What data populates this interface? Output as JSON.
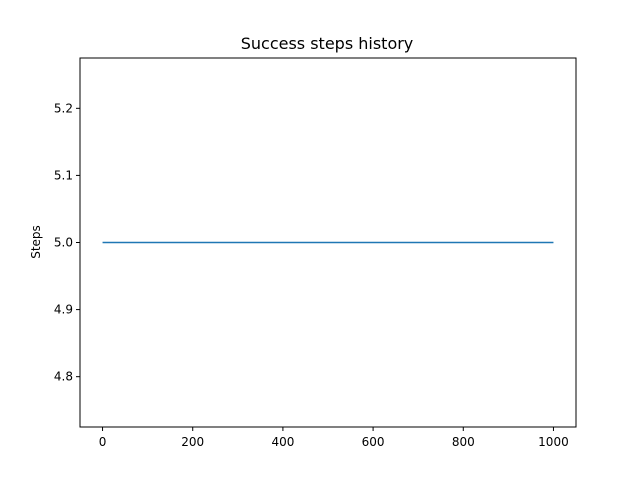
{
  "chart_data": {
    "type": "line",
    "title": "Success steps history",
    "xlabel": "",
    "ylabel": "Steps",
    "xlim": [
      -50,
      1050
    ],
    "ylim": [
      4.725,
      5.275
    ],
    "xticks": [
      0,
      200,
      400,
      600,
      800,
      1000
    ],
    "yticks": [
      4.8,
      4.9,
      5.0,
      5.1,
      5.2
    ],
    "xtick_labels": [
      "0",
      "200",
      "400",
      "600",
      "800",
      "1000"
    ],
    "ytick_labels": [
      "4.8",
      "4.9",
      "5.0",
      "5.1",
      "5.2"
    ],
    "grid": false,
    "legend": "none",
    "series": [
      {
        "color": "#1f77b4",
        "x": [
          0,
          1000
        ],
        "y": [
          5.0,
          5.0
        ]
      }
    ]
  }
}
